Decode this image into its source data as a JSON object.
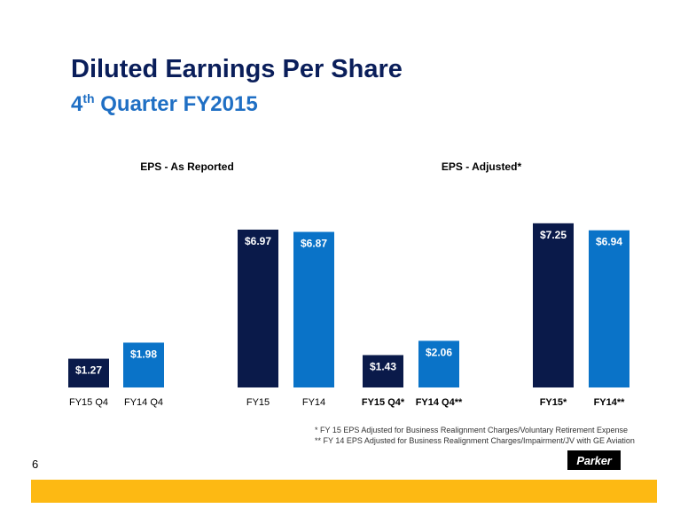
{
  "slide": {
    "title": "Diluted Earnings Per Share",
    "subtitle_pre": "4",
    "subtitle_sup": "th",
    "subtitle_post": " Quarter FY2015",
    "page_number": "6",
    "logo_text": "Parker",
    "footnote_1": "*   FY 15 EPS Adjusted for Business Realignment Charges/Voluntary Retirement Expense",
    "footnote_2": "**  FY 14 EPS Adjusted for Business Realignment Charges/Impairment/JV with GE Aviation"
  },
  "colors": {
    "dark": "#0a1a4a",
    "light": "#0a73c8",
    "title": "#0a1e5a",
    "accent": "#fdb913"
  },
  "chart_data": [
    {
      "type": "bar",
      "title": "EPS - As Reported",
      "categories": [
        "FY15 Q4",
        "FY14 Q4",
        "FY15",
        "FY14"
      ],
      "values": [
        1.27,
        1.98,
        6.97,
        6.87
      ],
      "labels": [
        "$1.27",
        "$1.98",
        "$6.97",
        "$6.87"
      ],
      "colors": [
        "#0a1a4a",
        "#0a73c8",
        "#0a1a4a",
        "#0a73c8"
      ],
      "ylim": [
        0,
        7.4
      ]
    },
    {
      "type": "bar",
      "title": "EPS - Adjusted*",
      "categories": [
        "FY15 Q4*",
        "FY14 Q4**",
        "FY15*",
        "FY14**"
      ],
      "values": [
        1.43,
        2.06,
        7.25,
        6.94
      ],
      "labels": [
        "$1.43",
        "$2.06",
        "$7.25",
        "$6.94"
      ],
      "colors": [
        "#0a1a4a",
        "#0a73c8",
        "#0a1a4a",
        "#0a73c8"
      ],
      "ylim": [
        0,
        7.4
      ]
    }
  ]
}
